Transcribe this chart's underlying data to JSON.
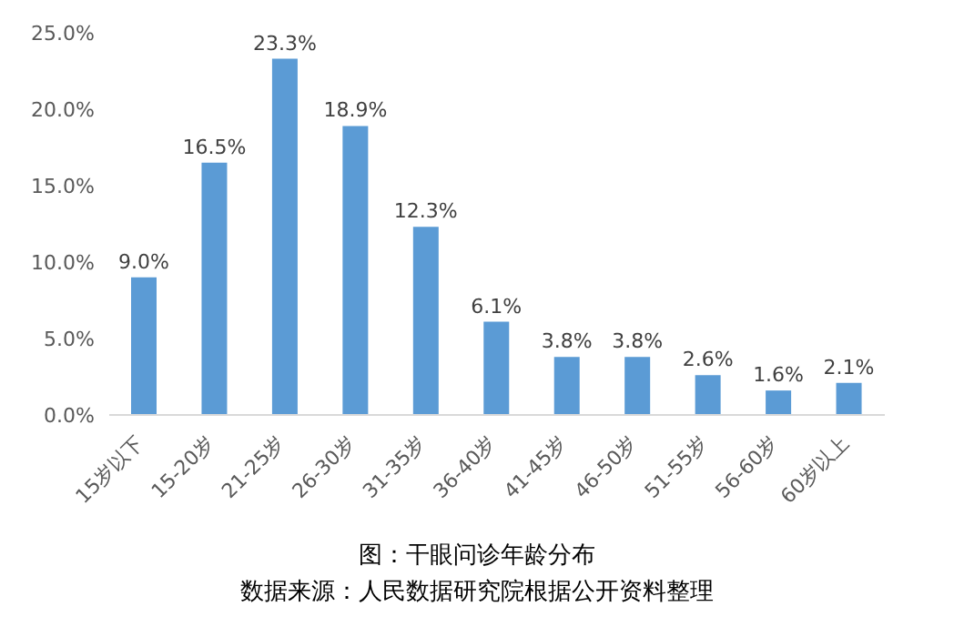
{
  "chart_data": {
    "type": "bar",
    "title": "图：干眼问诊年龄分布",
    "annotations": [
      "数据来源：人民数据研究院根据公开资料整理"
    ],
    "categories": [
      "15岁以下",
      "15-20岁",
      "21-25岁",
      "26-30岁",
      "31-35岁",
      "36-40岁",
      "41-45岁",
      "46-50岁",
      "51-55岁",
      "56-60岁",
      "60岁以上"
    ],
    "values": [
      9.0,
      16.5,
      23.3,
      18.9,
      12.3,
      6.1,
      3.8,
      3.8,
      2.6,
      1.6,
      2.1
    ],
    "value_labels": [
      "9.0%",
      "16.5%",
      "23.3%",
      "18.9%",
      "12.3%",
      "6.1%",
      "3.8%",
      "3.8%",
      "2.6%",
      "1.6%",
      "2.1%"
    ],
    "color": "#5b9bd5",
    "ylim": [
      0,
      25
    ],
    "yticks": [
      {
        "value": 0,
        "label": "0.0%"
      },
      {
        "value": 5,
        "label": "5.0%"
      },
      {
        "value": 10,
        "label": "10.0%"
      },
      {
        "value": 15,
        "label": "15.0%"
      },
      {
        "value": 20,
        "label": "20.0%"
      },
      {
        "value": 25,
        "label": "25.0%"
      }
    ],
    "grid": false,
    "legend": false
  }
}
